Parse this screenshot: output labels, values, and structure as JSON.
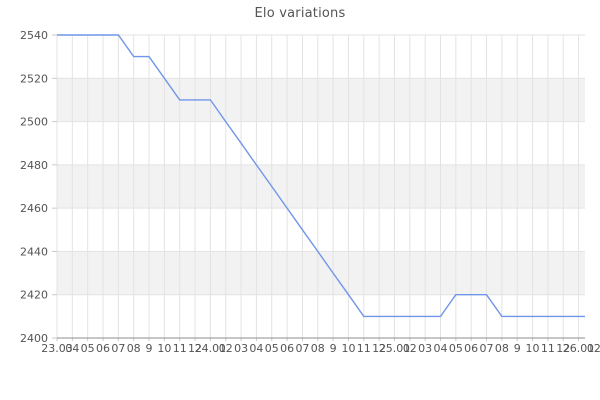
{
  "chart_data": {
    "type": "line",
    "title": "Elo variations",
    "x_labels": [
      "23.03",
      "04",
      "05",
      "06",
      "07",
      "08",
      "9",
      "10",
      "11",
      "12",
      "24.01",
      "02",
      "03",
      "04",
      "05",
      "06",
      "07",
      "08",
      "9",
      "10",
      "11",
      "12",
      "25.01",
      "02",
      "03",
      "04",
      "05",
      "06",
      "07",
      "08",
      "9",
      "10",
      "11",
      "12",
      "26.01",
      "02"
    ],
    "values": [
      2540,
      2540,
      2540,
      2540,
      2540,
      2530,
      2530,
      2520,
      2510,
      2510,
      2510,
      2500,
      2490,
      2480,
      2470,
      2460,
      2450,
      2440,
      2430,
      2420,
      2410,
      2410,
      2410,
      2410,
      2410,
      2410,
      2420,
      2420,
      2420,
      2410,
      2410,
      2410,
      2410,
      2410,
      2410,
      2410
    ],
    "series_name": "Elo",
    "y_ticks": [
      2400,
      2420,
      2440,
      2460,
      2480,
      2500,
      2520,
      2540
    ],
    "ylim": [
      2400,
      2540
    ],
    "grid": true,
    "legend_position": "none",
    "colors": {
      "line": "#6f96e8",
      "band": "#f2f2f2",
      "grid": "#e3e3e3",
      "axis": "#8f8f8f",
      "tick": "#c9c9c9",
      "labels": "#545454",
      "title": "#545454",
      "background": "#ffffff"
    }
  }
}
